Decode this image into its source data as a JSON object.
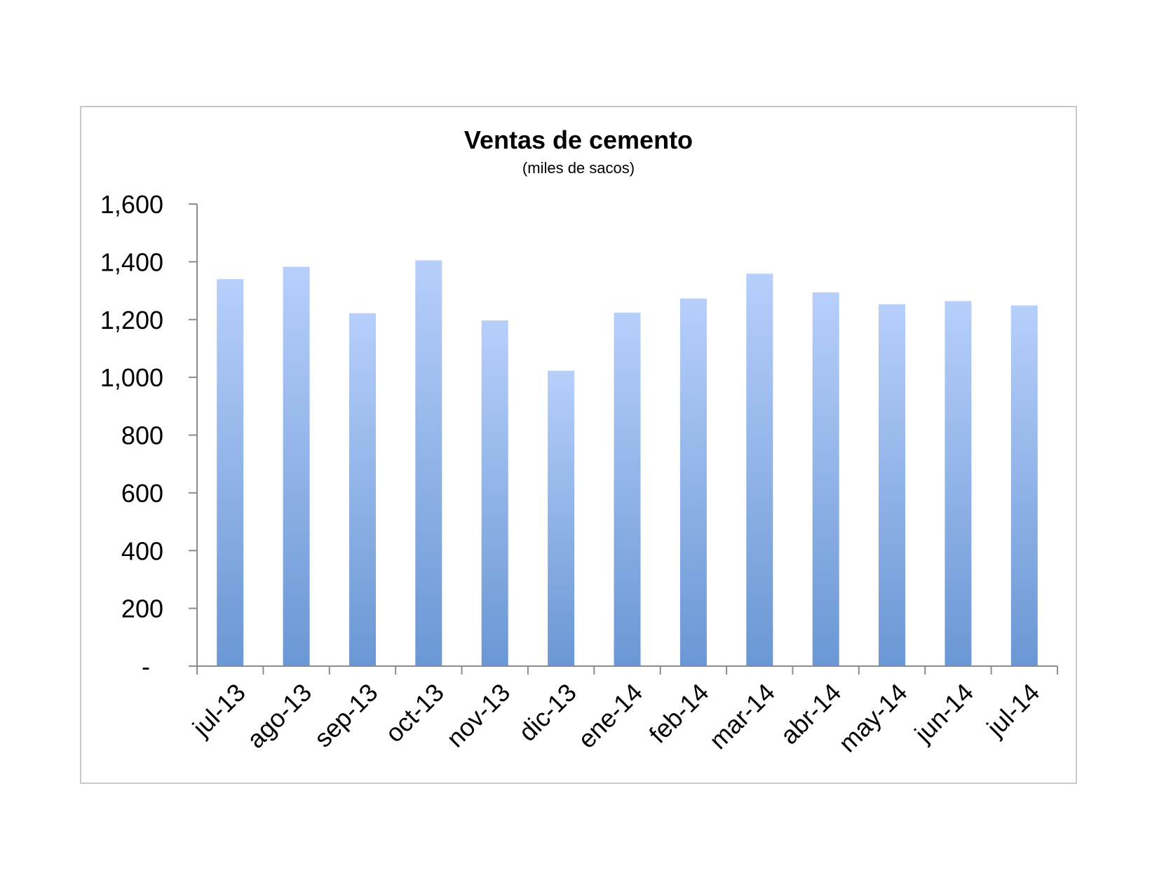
{
  "chart_data": {
    "type": "bar",
    "title": "Ventas de cemento",
    "subtitle": "(miles de sacos)",
    "xlabel": "",
    "ylabel": "",
    "categories": [
      "jul-13",
      "ago-13",
      "sep-13",
      "oct-13",
      "nov-13",
      "dic-13",
      "ene-14",
      "feb-14",
      "mar-14",
      "abr-14",
      "may-14",
      "jun-14",
      "jul-14"
    ],
    "values": [
      1340,
      1383,
      1222,
      1405,
      1197,
      1023,
      1224,
      1273,
      1359,
      1294,
      1253,
      1264,
      1249
    ],
    "ylim": [
      0,
      1600
    ],
    "yticks": [
      0,
      200,
      400,
      600,
      800,
      1000,
      1200,
      1400,
      1600
    ],
    "ytick_labels": [
      "-",
      "200",
      "400",
      "600",
      "800",
      "1,000",
      "1,200",
      "1,400",
      "1,600"
    ],
    "grid": false,
    "legend": "none",
    "colors": {
      "bar_top": "#b7cffb",
      "bar_bottom": "#6a97d4",
      "axis": "#8c8c8c",
      "frame": "#c8c8c8"
    }
  }
}
